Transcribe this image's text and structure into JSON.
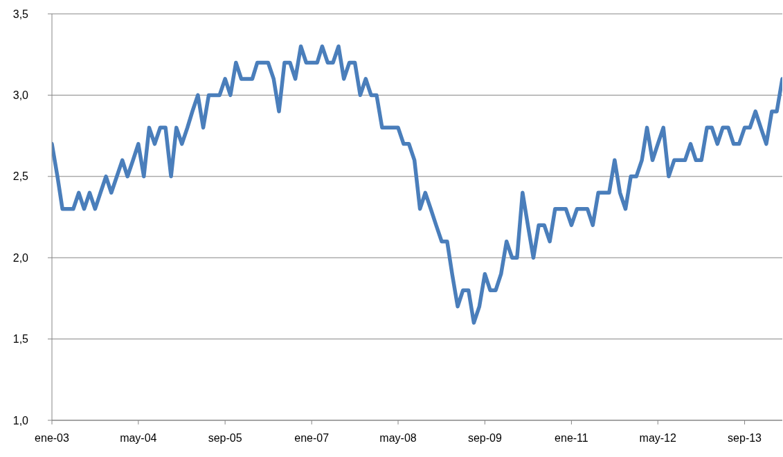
{
  "chart_data": {
    "type": "line",
    "x": [
      "2003-01",
      "2003-02",
      "2003-03",
      "2003-04",
      "2003-05",
      "2003-06",
      "2003-07",
      "2003-08",
      "2003-09",
      "2003-10",
      "2003-11",
      "2003-12",
      "2004-01",
      "2004-02",
      "2004-03",
      "2004-04",
      "2004-05",
      "2004-06",
      "2004-07",
      "2004-08",
      "2004-09",
      "2004-10",
      "2004-11",
      "2004-12",
      "2005-01",
      "2005-02",
      "2005-03",
      "2005-04",
      "2005-05",
      "2005-06",
      "2005-07",
      "2005-08",
      "2005-09",
      "2005-10",
      "2005-11",
      "2005-12",
      "2006-01",
      "2006-02",
      "2006-03",
      "2006-04",
      "2006-05",
      "2006-06",
      "2006-07",
      "2006-08",
      "2006-09",
      "2006-10",
      "2006-11",
      "2006-12",
      "2007-01",
      "2007-02",
      "2007-03",
      "2007-04",
      "2007-05",
      "2007-06",
      "2007-07",
      "2007-08",
      "2007-09",
      "2007-10",
      "2007-11",
      "2007-12",
      "2008-01",
      "2008-02",
      "2008-03",
      "2008-04",
      "2008-05",
      "2008-06",
      "2008-07",
      "2008-08",
      "2008-09",
      "2008-10",
      "2008-11",
      "2008-12",
      "2009-01",
      "2009-02",
      "2009-03",
      "2009-04",
      "2009-05",
      "2009-06",
      "2009-07",
      "2009-08",
      "2009-09",
      "2009-10",
      "2009-11",
      "2009-12",
      "2010-01",
      "2010-02",
      "2010-03",
      "2010-04",
      "2010-05",
      "2010-06",
      "2010-07",
      "2010-08",
      "2010-09",
      "2010-10",
      "2010-11",
      "2010-12",
      "2011-01",
      "2011-02",
      "2011-03",
      "2011-04",
      "2011-05",
      "2011-06",
      "2011-07",
      "2011-08",
      "2011-09",
      "2011-10",
      "2011-11",
      "2011-12",
      "2012-01",
      "2012-02",
      "2012-03",
      "2012-04",
      "2012-05",
      "2012-06",
      "2012-07",
      "2012-08",
      "2012-09",
      "2012-10",
      "2012-11",
      "2012-12",
      "2013-01",
      "2013-02",
      "2013-03",
      "2013-04",
      "2013-05",
      "2013-06",
      "2013-07",
      "2013-08",
      "2013-09",
      "2013-10",
      "2013-11",
      "2013-12",
      "2014-01",
      "2014-02",
      "2014-03",
      "2014-04"
    ],
    "values": [
      2.7,
      2.5,
      2.3,
      2.3,
      2.3,
      2.4,
      2.3,
      2.4,
      2.3,
      2.4,
      2.5,
      2.4,
      2.5,
      2.6,
      2.5,
      2.6,
      2.7,
      2.5,
      2.8,
      2.7,
      2.8,
      2.8,
      2.5,
      2.8,
      2.7,
      2.8,
      2.9,
      3.0,
      2.8,
      3.0,
      3.0,
      3.0,
      3.1,
      3.0,
      3.2,
      3.1,
      3.1,
      3.1,
      3.2,
      3.2,
      3.2,
      3.1,
      2.9,
      3.2,
      3.2,
      3.1,
      3.3,
      3.2,
      3.2,
      3.2,
      3.3,
      3.2,
      3.2,
      3.3,
      3.1,
      3.2,
      3.2,
      3.0,
      3.1,
      3.0,
      3.0,
      2.8,
      2.8,
      2.8,
      2.8,
      2.7,
      2.7,
      2.6,
      2.3,
      2.4,
      2.3,
      2.2,
      2.1,
      2.1,
      1.9,
      1.7,
      1.8,
      1.8,
      1.6,
      1.7,
      1.9,
      1.8,
      1.8,
      1.9,
      2.1,
      2.0,
      2.0,
      2.4,
      2.2,
      2.0,
      2.2,
      2.2,
      2.1,
      2.3,
      2.3,
      2.3,
      2.2,
      2.3,
      2.3,
      2.3,
      2.2,
      2.4,
      2.4,
      2.4,
      2.6,
      2.4,
      2.3,
      2.5,
      2.5,
      2.6,
      2.8,
      2.6,
      2.7,
      2.8,
      2.5,
      2.6,
      2.6,
      2.6,
      2.7,
      2.6,
      2.6,
      2.8,
      2.8,
      2.7,
      2.8,
      2.8,
      2.7,
      2.7,
      2.8,
      2.8,
      2.9,
      2.8,
      2.7,
      2.9,
      2.9,
      3.1
    ],
    "color": "#4a7ebb",
    "xlim": [
      "2003-01",
      "2014-04"
    ],
    "xticks": [
      {
        "value": "2003-01",
        "label": "ene-03"
      },
      {
        "value": "2004-05",
        "label": "may-04"
      },
      {
        "value": "2005-09",
        "label": "sep-05"
      },
      {
        "value": "2007-01",
        "label": "ene-07"
      },
      {
        "value": "2008-05",
        "label": "may-08"
      },
      {
        "value": "2009-09",
        "label": "sep-09"
      },
      {
        "value": "2011-01",
        "label": "ene-11"
      },
      {
        "value": "2012-05",
        "label": "may-12"
      },
      {
        "value": "2013-09",
        "label": "sep-13"
      }
    ],
    "ylim": [
      1.0,
      3.5
    ],
    "yticks": [
      {
        "value": 1.0,
        "label": "1,0"
      },
      {
        "value": 1.5,
        "label": "1,5"
      },
      {
        "value": 2.0,
        "label": "2,0"
      },
      {
        "value": 2.5,
        "label": "2,5"
      },
      {
        "value": 3.0,
        "label": "3,0"
      },
      {
        "value": 3.5,
        "label": "3,5"
      }
    ],
    "grid": "y"
  }
}
